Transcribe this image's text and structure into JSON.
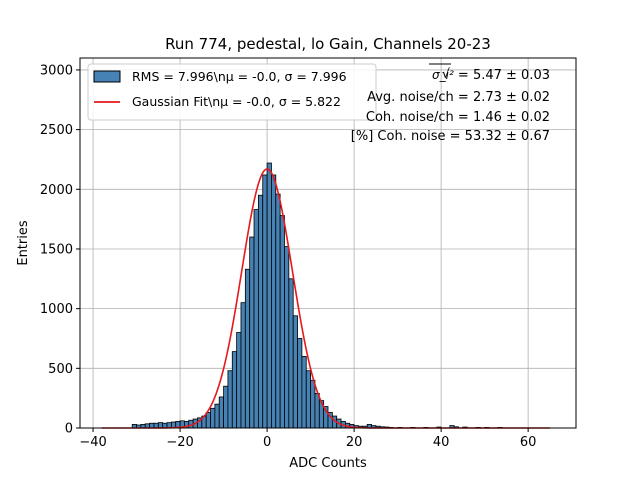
{
  "chart_data": {
    "type": "bar",
    "title": "Run 774, pedestal, lo Gain, Channels 20-23",
    "xlabel": "ADC Counts",
    "ylabel": "Entries",
    "xlim": [
      -43,
      71
    ],
    "ylim": [
      0,
      3100
    ],
    "xticks": [
      -40,
      -20,
      0,
      20,
      40,
      60
    ],
    "yticks": [
      0,
      500,
      1000,
      1500,
      2000,
      2500,
      3000
    ],
    "grid": true,
    "legend_position": "top-left",
    "bin_width": 1,
    "bar_color": "#4682b4",
    "bar_edge_color": "#000000",
    "fit_color": "#e41a1c",
    "histogram": {
      "name": "RMS = 7.996\\nμ = -0.0, σ = 7.996",
      "bin_left_edges": [
        -31,
        -30,
        -29,
        -28,
        -27,
        -26,
        -25,
        -24,
        -23,
        -22,
        -21,
        -20,
        -19,
        -18,
        -17,
        -16,
        -15,
        -14,
        -13,
        -12,
        -11,
        -10,
        -9,
        -8,
        -7,
        -6,
        -5,
        -4,
        -3,
        -2,
        -1,
        0,
        1,
        2,
        3,
        4,
        5,
        6,
        7,
        8,
        9,
        10,
        11,
        12,
        13,
        14,
        15,
        16,
        17,
        18,
        19,
        20,
        21,
        22,
        23,
        24,
        25,
        26,
        27,
        28,
        30,
        33,
        36,
        39,
        42,
        43,
        45,
        48,
        50,
        53
      ],
      "counts": [
        30,
        25,
        30,
        35,
        40,
        40,
        45,
        40,
        45,
        50,
        55,
        60,
        55,
        65,
        75,
        85,
        100,
        130,
        165,
        200,
        260,
        350,
        480,
        640,
        800,
        1050,
        1330,
        1600,
        1830,
        1950,
        2120,
        2220,
        2120,
        1960,
        1780,
        1520,
        1250,
        940,
        750,
        600,
        480,
        400,
        290,
        230,
        180,
        130,
        100,
        75,
        55,
        40,
        30,
        20,
        15,
        15,
        30,
        20,
        15,
        10,
        8,
        5,
        5,
        5,
        5,
        8,
        20,
        10,
        8,
        5,
        5,
        5
      ]
    },
    "fit": {
      "name": "Gaussian Fit\\nμ = -0.0, σ = 5.822",
      "mu": 0.0,
      "sigma": 5.822,
      "amplitude": 2170,
      "x_range": [
        -38,
        65
      ]
    },
    "annotations": [
      {
        "label_math": "σ_i²",
        "value": "= 5.47 ± 0.03"
      },
      {
        "text": "Avg. noise/ch = 2.73 ± 0.02"
      },
      {
        "text": "Coh. noise/ch = 1.46 ± 0.02"
      },
      {
        "text": "[%] Coh. noise = 53.32 ± 0.67"
      }
    ]
  }
}
